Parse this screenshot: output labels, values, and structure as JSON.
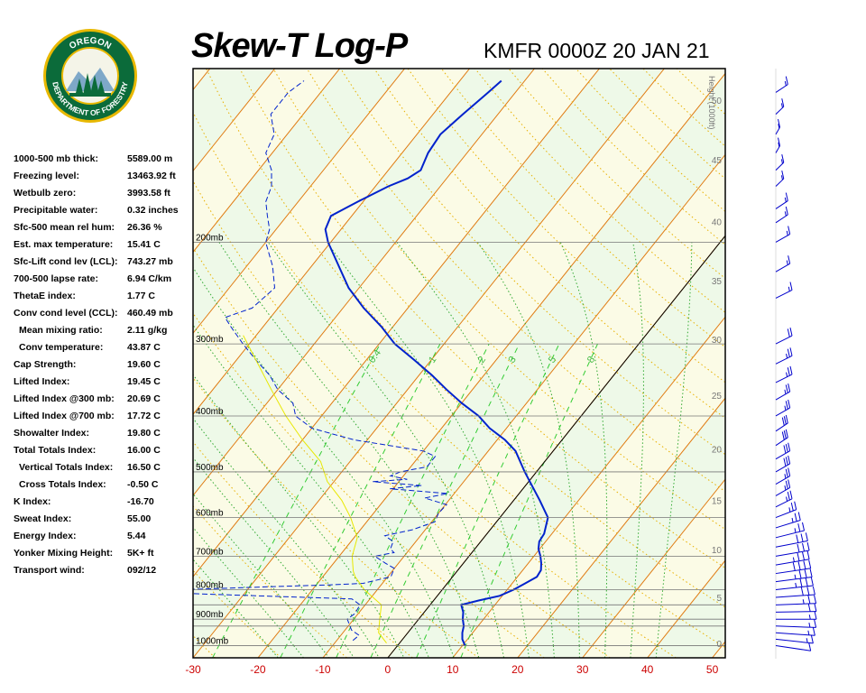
{
  "header": {
    "title": "Skew-T Log-P",
    "station": "KMFR 0000Z 20 JAN 21"
  },
  "logo": {
    "top_text": "OREGON",
    "bottom_text": "DEPARTMENT OF FORESTRY"
  },
  "indices": [
    {
      "label": "1000-500 mb thick:",
      "value": "5589.00 m"
    },
    {
      "label": "Freezing level:",
      "value": "13463.92 ft"
    },
    {
      "label": "Wetbulb zero:",
      "value": "3993.58 ft"
    },
    {
      "label": "Precipitable water:",
      "value": "0.32 inches"
    },
    {
      "label": "Sfc-500 mean rel hum:",
      "value": "26.36 %"
    },
    {
      "label": "Est. max temperature:",
      "value": "15.41 C"
    },
    {
      "label": "Sfc-Lift cond lev (LCL):",
      "value": "743.27 mb"
    },
    {
      "label": "700-500 lapse rate:",
      "value": "6.94 C/km"
    },
    {
      "label": "ThetaE index:",
      "value": "1.77 C"
    },
    {
      "label": "Conv cond level (CCL):",
      "value": "460.49 mb"
    },
    {
      "label": "Mean mixing ratio:",
      "value": "2.11 g/kg",
      "indent": true
    },
    {
      "label": "Conv temperature:",
      "value": "43.87 C",
      "indent": true
    },
    {
      "label": "Cap Strength:",
      "value": "19.60 C"
    },
    {
      "label": "Lifted Index:",
      "value": "19.45 C"
    },
    {
      "label": "Lifted Index @300 mb:",
      "value": "20.69 C"
    },
    {
      "label": "Lifted Index @700 mb:",
      "value": "17.72 C"
    },
    {
      "label": "Showalter Index:",
      "value": "19.80 C"
    },
    {
      "label": "Total Totals Index:",
      "value": "16.00 C"
    },
    {
      "label": "Vertical Totals Index:",
      "value": "16.50 C",
      "indent": true
    },
    {
      "label": "Cross Totals Index:",
      "value": "-0.50 C",
      "indent": true
    },
    {
      "label": "K Index:",
      "value": "-16.70"
    },
    {
      "label": "Sweat Index:",
      "value": "55.00"
    },
    {
      "label": "Energy Index:",
      "value": "5.44"
    },
    {
      "label": "Yonker Mixing Height:",
      "value": "5K+ ft"
    },
    {
      "label": "Transport wind:",
      "value": "092/12"
    }
  ],
  "chart_data": {
    "type": "line",
    "chart_kind": "skew-t log-p diagram",
    "xlim": [
      -30,
      52
    ],
    "x_ticks": [
      "-30",
      "-20",
      "-10",
      "0",
      "10",
      "20",
      "30",
      "40",
      "50"
    ],
    "pressure_range_mb": [
      1050,
      100
    ],
    "isobars": [
      {
        "p": 1000,
        "label": "1000mb"
      },
      {
        "p": 925,
        "label": ""
      },
      {
        "p": 900,
        "label": "900mb"
      },
      {
        "p": 850,
        "label": ""
      },
      {
        "p": 800,
        "label": "800mb"
      },
      {
        "p": 700,
        "label": "700mb"
      },
      {
        "p": 600,
        "label": "600mb"
      },
      {
        "p": 500,
        "label": "500mb"
      },
      {
        "p": 400,
        "label": "400mb"
      },
      {
        "p": 300,
        "label": "300mb"
      },
      {
        "p": 200,
        "label": "200mb"
      }
    ],
    "height_axis": {
      "title": "Height (1000ft)",
      "ticks": [
        {
          "label": "0",
          "p": 1013
        },
        {
          "label": "5",
          "p": 843
        },
        {
          "label": "10",
          "p": 697
        },
        {
          "label": "15",
          "p": 572
        },
        {
          "label": "20",
          "p": 466
        },
        {
          "label": "25",
          "p": 376
        },
        {
          "label": "30",
          "p": 301
        },
        {
          "label": "35",
          "p": 238
        },
        {
          "label": "40",
          "p": 188
        },
        {
          "label": "45",
          "p": 147
        },
        {
          "label": "50",
          "p": 116
        }
      ]
    },
    "mixing_ratio_labels": [
      "0.4",
      "1",
      "2",
      "3",
      "5",
      "8"
    ],
    "mixing_ratio_values": [
      0.4,
      1,
      2,
      3,
      5,
      8
    ],
    "isotherm_color": "#e07a10",
    "dry_adiabat_color": "#e8b000",
    "moist_adiabat_color": "#33aa33",
    "mixing_ratio_color": "#33cc33",
    "temperature_color": "#0022cc",
    "dewpoint_color": "#0022cc",
    "parcel_color": "#e8e800",
    "series": [
      {
        "name": "temperature",
        "style": "solid",
        "points": [
          [
            1000,
            10.4
          ],
          [
            975,
            9.2
          ],
          [
            950,
            8.4
          ],
          [
            925,
            7.8
          ],
          [
            900,
            6.8
          ],
          [
            875,
            6.0
          ],
          [
            850,
            4.8
          ],
          [
            835,
            7.0
          ],
          [
            820,
            9.6
          ],
          [
            800,
            11.0
          ],
          [
            780,
            12.0
          ],
          [
            760,
            13.0
          ],
          [
            740,
            12.8
          ],
          [
            720,
            12.0
          ],
          [
            700,
            11.0
          ],
          [
            680,
            9.8
          ],
          [
            660,
            9.0
          ],
          [
            640,
            8.8
          ],
          [
            600,
            7.4
          ],
          [
            560,
            4.0
          ],
          [
            520,
            0.2
          ],
          [
            500,
            -1.8
          ],
          [
            460,
            -5.8
          ],
          [
            440,
            -8.8
          ],
          [
            420,
            -12.6
          ],
          [
            400,
            -15.8
          ],
          [
            380,
            -20.0
          ],
          [
            360,
            -24.0
          ],
          [
            340,
            -28.0
          ],
          [
            320,
            -32.6
          ],
          [
            300,
            -37.6
          ],
          [
            280,
            -41.8
          ],
          [
            260,
            -46.8
          ],
          [
            240,
            -51.6
          ],
          [
            220,
            -55.8
          ],
          [
            200,
            -60.4
          ],
          [
            190,
            -62.4
          ],
          [
            180,
            -63.2
          ],
          [
            170,
            -60.8
          ],
          [
            160,
            -58.0
          ],
          [
            155,
            -56.0
          ],
          [
            150,
            -55.0
          ],
          [
            140,
            -56.0
          ],
          [
            130,
            -56.4
          ],
          [
            120,
            -55.4
          ],
          [
            115,
            -54.8
          ],
          [
            110,
            -54.2
          ],
          [
            105,
            -53.6
          ]
        ]
      },
      {
        "name": "dewpoint",
        "style": "dashed",
        "points": [
          [
            980,
            -7.5
          ],
          [
            960,
            -7.2
          ],
          [
            940,
            -9.0
          ],
          [
            900,
            -11.0
          ],
          [
            880,
            -10.5
          ],
          [
            850,
            -10.8
          ],
          [
            830,
            -12.8
          ],
          [
            815,
            -35.0
          ],
          [
            805,
            -48.0
          ],
          [
            800,
            -40.0
          ],
          [
            790,
            -26.0
          ],
          [
            785,
            -18.0
          ],
          [
            780,
            -13.0
          ],
          [
            760,
            -9.5
          ],
          [
            735,
            -10.0
          ],
          [
            720,
            -12.0
          ],
          [
            700,
            -14.5
          ],
          [
            690,
            -12.0
          ],
          [
            680,
            -13.0
          ],
          [
            660,
            -13.5
          ],
          [
            645,
            -15.5
          ],
          [
            630,
            -12.0
          ],
          [
            610,
            -9.5
          ],
          [
            590,
            -10.0
          ],
          [
            570,
            -9.8
          ],
          [
            555,
            -14.0
          ],
          [
            545,
            -11.0
          ],
          [
            535,
            -20.5
          ],
          [
            528,
            -16.0
          ],
          [
            520,
            -24.0
          ],
          [
            515,
            -19.0
          ],
          [
            508,
            -22.0
          ],
          [
            500,
            -21.0
          ],
          [
            490,
            -17.5
          ],
          [
            470,
            -17.5
          ],
          [
            460,
            -20.0
          ],
          [
            440,
            -32.0
          ],
          [
            430,
            -36.0
          ],
          [
            420,
            -40.0
          ],
          [
            400,
            -44.0
          ],
          [
            380,
            -46.0
          ],
          [
            360,
            -50.0
          ],
          [
            340,
            -53.0
          ],
          [
            320,
            -57.0
          ],
          [
            300,
            -61.0
          ],
          [
            280,
            -65.0
          ],
          [
            270,
            -67.0
          ],
          [
            260,
            -64.0
          ],
          [
            240,
            -63.0
          ],
          [
            220,
            -66.0
          ],
          [
            200,
            -70.0
          ],
          [
            190,
            -71.0
          ],
          [
            180,
            -73.0
          ],
          [
            170,
            -75.0
          ],
          [
            160,
            -76.0
          ],
          [
            150,
            -78.0
          ],
          [
            140,
            -81.0
          ],
          [
            130,
            -82.0
          ],
          [
            120,
            -85.0
          ],
          [
            110,
            -85.0
          ],
          [
            105,
            -84.0
          ]
        ]
      },
      {
        "name": "parcel",
        "style": "thin",
        "points": [
          [
            990,
            -2.0
          ],
          [
            950,
            -4.5
          ],
          [
            900,
            -6.0
          ],
          [
            850,
            -7.5
          ],
          [
            800,
            -12.0
          ],
          [
            760,
            -15.0
          ],
          [
            743,
            -16.0
          ],
          [
            700,
            -18.0
          ],
          [
            650,
            -19.5
          ],
          [
            600,
            -23.0
          ],
          [
            560,
            -26.5
          ],
          [
            520,
            -31.0
          ],
          [
            480,
            -34.5
          ],
          [
            440,
            -40.0
          ],
          [
            400,
            -45.5
          ],
          [
            360,
            -51.0
          ],
          [
            320,
            -57.0
          ],
          [
            290,
            -62.0
          ]
        ]
      }
    ],
    "wind_barbs": [
      {
        "p": 1000,
        "dir": 130,
        "spd": 10
      },
      {
        "p": 975,
        "dir": 120,
        "spd": 15
      },
      {
        "p": 950,
        "dir": 110,
        "spd": 15
      },
      {
        "p": 925,
        "dir": 100,
        "spd": 15
      },
      {
        "p": 900,
        "dir": 90,
        "spd": 15
      },
      {
        "p": 875,
        "dir": 85,
        "spd": 20
      },
      {
        "p": 850,
        "dir": 80,
        "spd": 25
      },
      {
        "p": 825,
        "dir": 70,
        "spd": 30
      },
      {
        "p": 800,
        "dir": 60,
        "spd": 35
      },
      {
        "p": 775,
        "dir": 55,
        "spd": 35
      },
      {
        "p": 750,
        "dir": 50,
        "spd": 40
      },
      {
        "p": 725,
        "dir": 45,
        "spd": 35
      },
      {
        "p": 700,
        "dir": 45,
        "spd": 30
      },
      {
        "p": 675,
        "dir": 40,
        "spd": 30
      },
      {
        "p": 650,
        "dir": 30,
        "spd": 25
      },
      {
        "p": 625,
        "dir": 20,
        "spd": 25
      },
      {
        "p": 600,
        "dir": 10,
        "spd": 25
      },
      {
        "p": 575,
        "dir": 360,
        "spd": 25
      },
      {
        "p": 550,
        "dir": 355,
        "spd": 25
      },
      {
        "p": 525,
        "dir": 355,
        "spd": 25
      },
      {
        "p": 500,
        "dir": 355,
        "spd": 30
      },
      {
        "p": 475,
        "dir": 355,
        "spd": 30
      },
      {
        "p": 450,
        "dir": 350,
        "spd": 30
      },
      {
        "p": 425,
        "dir": 350,
        "spd": 30
      },
      {
        "p": 400,
        "dir": 355,
        "spd": 25
      },
      {
        "p": 375,
        "dir": 355,
        "spd": 25
      },
      {
        "p": 350,
        "dir": 360,
        "spd": 25
      },
      {
        "p": 325,
        "dir": 360,
        "spd": 25
      },
      {
        "p": 300,
        "dir": 360,
        "spd": 20
      },
      {
        "p": 250,
        "dir": 360,
        "spd": 15
      },
      {
        "p": 225,
        "dir": 355,
        "spd": 15
      },
      {
        "p": 200,
        "dir": 355,
        "spd": 15
      },
      {
        "p": 185,
        "dir": 350,
        "spd": 15
      },
      {
        "p": 175,
        "dir": 350,
        "spd": 15
      },
      {
        "p": 160,
        "dir": 340,
        "spd": 15
      },
      {
        "p": 150,
        "dir": 340,
        "spd": 15
      },
      {
        "p": 140,
        "dir": 330,
        "spd": 15
      },
      {
        "p": 130,
        "dir": 330,
        "spd": 15
      },
      {
        "p": 120,
        "dir": 340,
        "spd": 15
      },
      {
        "p": 110,
        "dir": 350,
        "spd": 15
      }
    ]
  }
}
